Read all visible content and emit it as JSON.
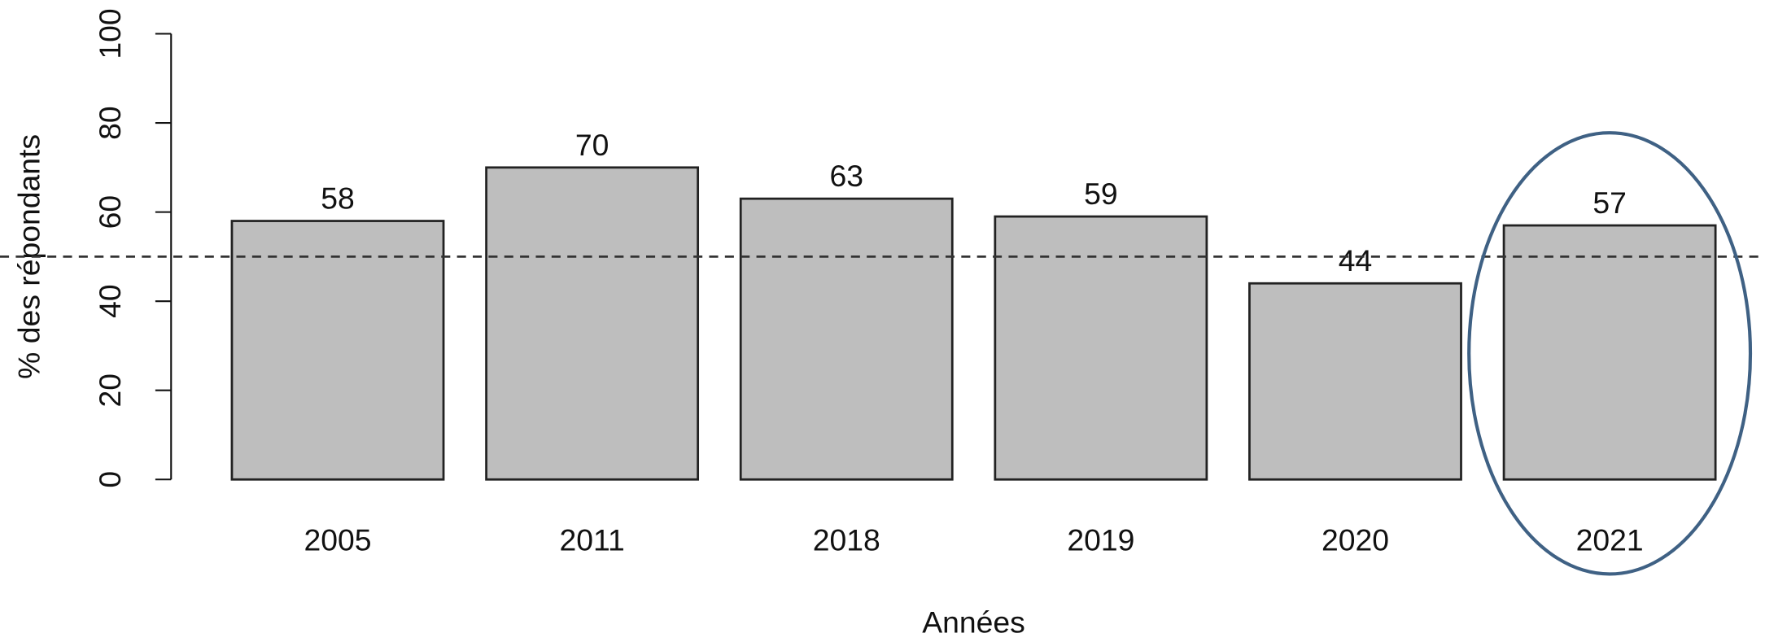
{
  "chart_data": {
    "type": "bar",
    "x_label": "Années",
    "y_label": "% des répondants",
    "categories": [
      "2005",
      "2011",
      "2018",
      "2019",
      "2020",
      "2021"
    ],
    "values": [
      58,
      70,
      63,
      59,
      44,
      57
    ],
    "color": "#bebebe",
    "ylim": [
      0,
      100
    ],
    "yticks": [
      0,
      20,
      40,
      60,
      80,
      100
    ],
    "reference_line": 50
  }
}
